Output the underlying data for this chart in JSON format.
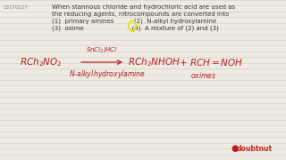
{
  "bg_color": "#eeeae2",
  "line_color": "#c9c5bc",
  "text_color": "#3a3530",
  "red_color": "#b52020",
  "question_id": "13170227",
  "title_lines": [
    "When stannous chloride and hydrochloric acid are used as",
    "the reducing agents, nitrocompounds are converted into",
    "(1)  primary amines          (2)  N-alkyl hydroxylamine",
    "(3)  oxime                        (4)  A mixture of (2) and (3)"
  ],
  "circle_color": "#e8e000",
  "doubtnut_color": "#cc2222",
  "id_color": "#888080",
  "num_lines": 28,
  "line_alpha": 0.6
}
